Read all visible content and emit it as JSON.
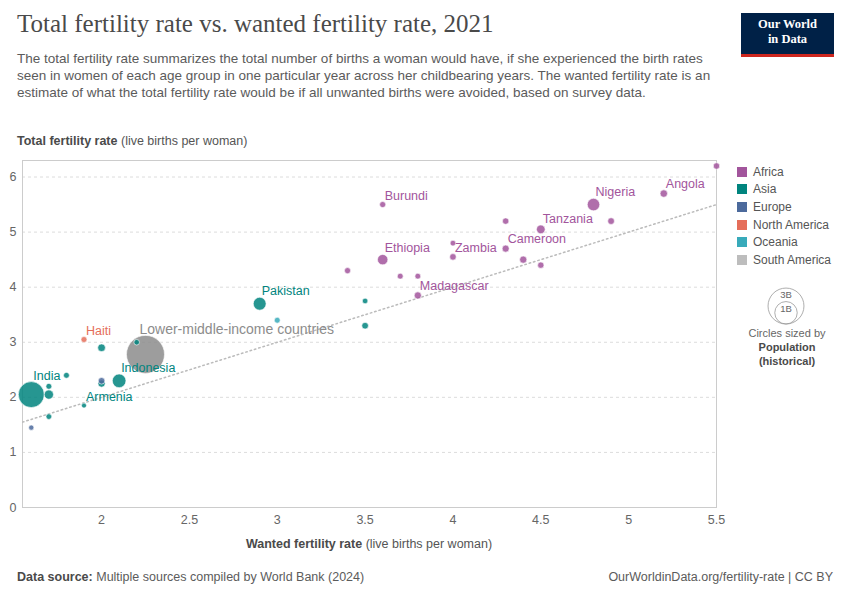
{
  "chart_data": {
    "type": "scatter",
    "title": "Total fertility rate vs. wanted fertility rate, 2021",
    "subtitle": "The total fertility rate summarizes the total number of births a woman would have, if she experienced the birth rates seen in women of each age group in one particular year across her childbearing years. The wanted fertility rate is an estimate of what the total fertility rate would be if all unwanted births were avoided, based on survey data.",
    "logo": [
      "Our World",
      "in Data"
    ],
    "x_label": "Wanted fertility rate",
    "x_unit": "(live births per woman)",
    "y_label": "Total fertility rate",
    "y_unit": "(live births per woman)",
    "xlim": [
      1.55,
      5.5
    ],
    "xticks": [
      2,
      2.5,
      3,
      3.5,
      4,
      4.5,
      5,
      5.5
    ],
    "ylim": [
      0,
      6.3
    ],
    "yticks": [
      0,
      1,
      2,
      3,
      4,
      5,
      6
    ],
    "grid": true,
    "legend": "right",
    "reference_line": {
      "x": [
        1.55,
        5.5
      ],
      "y": [
        1.55,
        5.5
      ]
    },
    "series": [
      {
        "name": "Africa",
        "color": "#a2559c",
        "points": [
          {
            "label": "Angola",
            "x": 5.2,
            "y": 5.7,
            "population": 34500000
          },
          {
            "x": 5.5,
            "y": 6.2,
            "population": 17000000
          },
          {
            "label": "Nigeria",
            "x": 4.8,
            "y": 5.5,
            "population": 213000000
          },
          {
            "x": 4.9,
            "y": 5.2,
            "population": 22000000
          },
          {
            "label": "Burundi",
            "x": 3.6,
            "y": 5.5,
            "population": 12600000
          },
          {
            "x": 4.3,
            "y": 5.2,
            "population": 17000000
          },
          {
            "label": "Tanzania",
            "x": 4.5,
            "y": 5.05,
            "population": 63600000
          },
          {
            "label": "Cameroon",
            "x": 4.3,
            "y": 4.7,
            "population": 27000000
          },
          {
            "label": "Zambia",
            "x": 4.0,
            "y": 4.55,
            "population": 19000000
          },
          {
            "x": 4.0,
            "y": 4.8,
            "population": 8000000
          },
          {
            "x": 4.4,
            "y": 4.5,
            "population": 30000000
          },
          {
            "x": 4.5,
            "y": 4.4,
            "population": 16000000
          },
          {
            "label": "Ethiopia",
            "x": 3.6,
            "y": 4.5,
            "population": 120000000
          },
          {
            "x": 3.4,
            "y": 4.3,
            "population": 13000000
          },
          {
            "x": 3.7,
            "y": 4.2,
            "population": 10000000
          },
          {
            "x": 3.8,
            "y": 4.2,
            "population": 9000000
          },
          {
            "label": "Madagascar",
            "x": 3.8,
            "y": 3.85,
            "population": 29000000
          }
        ]
      },
      {
        "name": "Asia",
        "color": "#00847e",
        "points": [
          {
            "label": "Pakistan",
            "x": 2.9,
            "y": 3.7,
            "population": 231000000
          },
          {
            "x": 3.5,
            "y": 3.75,
            "population": 7000000
          },
          {
            "x": 3.5,
            "y": 3.3,
            "population": 20000000
          },
          {
            "x": 2.0,
            "y": 2.9,
            "population": 40000000
          },
          {
            "x": 2.2,
            "y": 3.0,
            "population": 7000000
          },
          {
            "label": "Indonesia",
            "x": 2.1,
            "y": 2.3,
            "population": 274000000
          },
          {
            "label": "India",
            "x": 1.6,
            "y": 2.05,
            "population": 1414000000
          },
          {
            "x": 1.7,
            "y": 2.05,
            "population": 80000000
          },
          {
            "x": 1.7,
            "y": 2.2,
            "population": 10000000
          },
          {
            "x": 1.8,
            "y": 2.4,
            "population": 10000000
          },
          {
            "x": 2.0,
            "y": 2.25,
            "population": 30000000
          },
          {
            "label": "Armenia",
            "x": 1.9,
            "y": 1.85,
            "population": 2800000
          },
          {
            "x": 1.7,
            "y": 1.65,
            "population": 8000000
          }
        ]
      },
      {
        "name": "Europe",
        "color": "#4c6a9c",
        "points": [
          {
            "x": 2.0,
            "y": 2.3,
            "population": 20000000
          },
          {
            "x": 1.6,
            "y": 1.45,
            "population": 4000000
          }
        ]
      },
      {
        "name": "North America",
        "color": "#e56e5a",
        "points": [
          {
            "label": "Haiti",
            "x": 1.9,
            "y": 3.05,
            "population": 11400000
          }
        ]
      },
      {
        "name": "Oceania",
        "color": "#38aaba",
        "points": [
          {
            "x": 3.0,
            "y": 3.4,
            "population": 9900000
          }
        ]
      },
      {
        "name": "South America",
        "color": "#bdbdbd",
        "points": []
      }
    ],
    "aggregate": {
      "name": "Lower-middle-income countries",
      "x": 2.25,
      "y": 2.78,
      "population": 3400000000,
      "color": "#8c8c8c"
    },
    "size_legend": {
      "title": "Circles sized by",
      "variable": "Population",
      "note": "(historical)",
      "ticks": [
        {
          "value": 3000000000,
          "label": "3B"
        },
        {
          "value": 1000000000,
          "label": "1B"
        }
      ]
    },
    "source_label": "Data source:",
    "source": "Multiple sources compiled by World Bank (2024)",
    "url_note": "OurWorldinData.org/fertility-rate | CC BY"
  }
}
